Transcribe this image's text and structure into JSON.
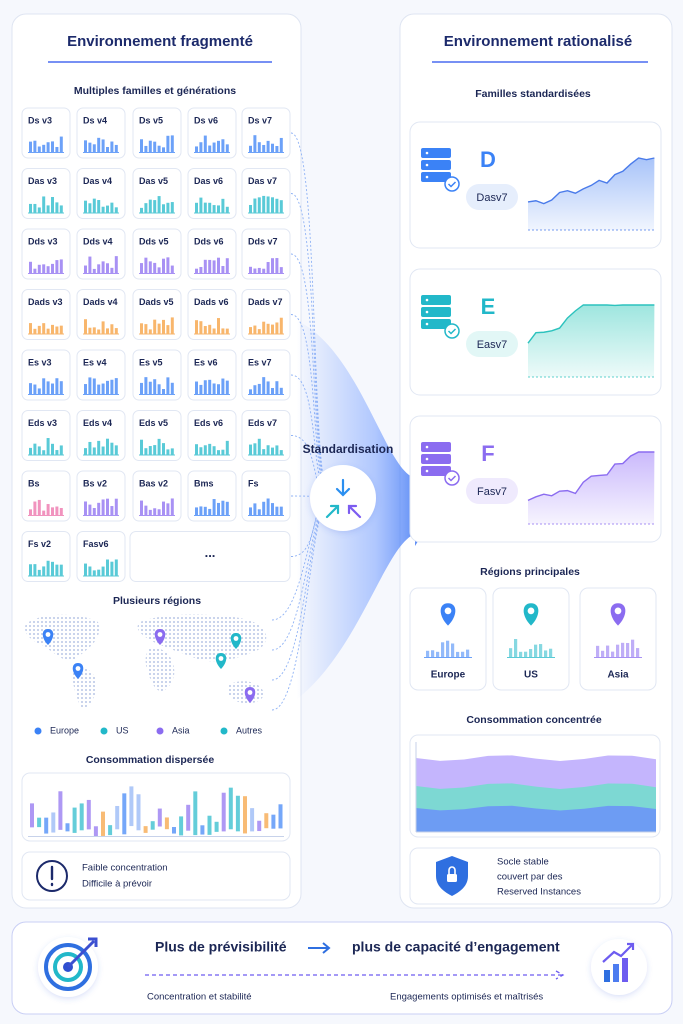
{
  "left": {
    "title": "Environnement fragmenté",
    "families_heading": "Multiples familles et générations",
    "tiles": [
      [
        "Ds v3",
        "Ds v4",
        "Ds v5",
        "Ds v6",
        "Ds v7"
      ],
      [
        "Das v3",
        "Das v4",
        "Das v5",
        "Das v6",
        "Das v7"
      ],
      [
        "Dds v3",
        "Dds v4",
        "Dds v5",
        "Dds v6",
        "Dds v7"
      ],
      [
        "Dads v3",
        "Dads v4",
        "Dads v5",
        "Dads v6",
        "Dads v7"
      ],
      [
        "Es v3",
        "Es v4",
        "Es v5",
        "Es v6",
        "Es v7"
      ],
      [
        "Eds v3",
        "Eds v4",
        "Eds v5",
        "Eds v6",
        "Eds v7"
      ],
      [
        "Bs",
        "Bs v2",
        "Bas v2",
        "Bms",
        "Fs"
      ],
      [
        "Fs v2",
        "Fasv6"
      ]
    ],
    "more": "...",
    "regions_heading": "Plusieurs régions",
    "legend": [
      "Europe",
      "US",
      "Asia",
      "Autres"
    ],
    "consumption_heading": "Consommation dispersée",
    "warning": [
      "Faible concentration",
      "Difficile à prévoir"
    ]
  },
  "center": {
    "label": "Standardisation"
  },
  "right": {
    "title": "Environnement rationalisé",
    "families_heading": "Familles standardisées",
    "families": [
      {
        "letter": "D",
        "name": "Dasv7"
      },
      {
        "letter": "E",
        "name": "Easv7"
      },
      {
        "letter": "F",
        "name": "Fasv7"
      }
    ],
    "regions_heading": "Régions principales",
    "regions": [
      "Europe",
      "US",
      "Asia"
    ],
    "consumption_heading": "Consommation concentrée",
    "note": [
      "Socle stable",
      "couvert par des",
      "Reserved Instances"
    ]
  },
  "footer": {
    "headline_left": "Plus de prévisibilité",
    "headline_right": "plus de capacité d’engagement",
    "caption_left": "Concentration et stabilité",
    "caption_right": "Engagements optimisés et maîtrisés"
  }
}
